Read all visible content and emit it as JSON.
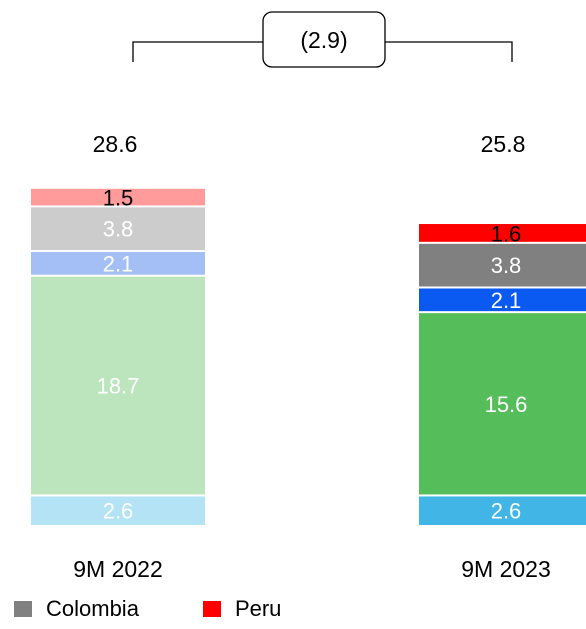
{
  "chart_data": {
    "type": "bar",
    "stacked": true,
    "categories": [
      "9M 2022",
      "9M 2023"
    ],
    "totals": [
      "28.6",
      "25.8"
    ],
    "change_label": "(2.9)",
    "segments": [
      {
        "values": [
          2.6,
          2.6
        ],
        "labels": [
          "2.6",
          "2.6"
        ],
        "colors": [
          "#b3e3f5",
          "#41b6e6"
        ],
        "label_colors": [
          "#ffffff",
          "#ffffff"
        ]
      },
      {
        "values": [
          18.7,
          15.6
        ],
        "labels": [
          "18.7",
          "15.6"
        ],
        "colors": [
          "#bde5bd",
          "#56bd5b"
        ],
        "label_colors": [
          "#ffffff",
          "#ffffff"
        ]
      },
      {
        "values": [
          2.1,
          2.1
        ],
        "labels": [
          "2.1",
          "2.1"
        ],
        "colors": [
          "#a3bff5",
          "#0a59f0"
        ],
        "label_colors": [
          "#ffffff",
          "#ffffff"
        ]
      },
      {
        "values": [
          3.8,
          3.8
        ],
        "labels": [
          "3.8",
          "3.8"
        ],
        "colors": [
          "#cccccc",
          "#808080"
        ],
        "label_colors": [
          "#ffffff",
          "#ffffff"
        ]
      },
      {
        "values": [
          1.5,
          1.6
        ],
        "labels": [
          "1.5",
          "1.6"
        ],
        "colors": [
          "#ff9b9b",
          "#ff0000"
        ],
        "label_colors": [
          "#000000",
          "#000000"
        ]
      }
    ],
    "legend": [
      {
        "name": "Colombia",
        "color": "#808080"
      },
      {
        "name": "Peru",
        "color": "#ff0000"
      }
    ],
    "legend_position": "bottom-left",
    "grid": false
  }
}
